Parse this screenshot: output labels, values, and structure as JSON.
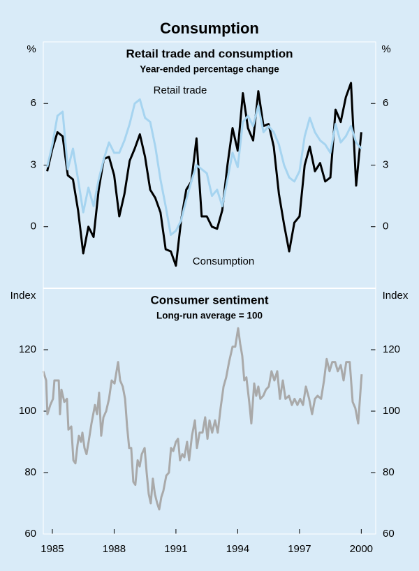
{
  "title": "Consumption",
  "chart_data": [
    {
      "type": "line",
      "title": "Retail trade and consumption",
      "subtitle": "Year-ended percentage change",
      "y_label": "%",
      "xlim": [
        1984.56,
        2000.7
      ],
      "ylim": [
        -3,
        9
      ],
      "yticks": [
        0,
        3,
        6
      ],
      "x": [
        1984.75,
        1985,
        1985.25,
        1985.5,
        1985.75,
        1986,
        1986.25,
        1986.5,
        1986.75,
        1987,
        1987.25,
        1987.5,
        1987.75,
        1988,
        1988.25,
        1988.5,
        1988.75,
        1989,
        1989.25,
        1989.5,
        1989.75,
        1990,
        1990.25,
        1990.5,
        1990.75,
        1991,
        1991.25,
        1991.5,
        1991.75,
        1992,
        1992.25,
        1992.5,
        1992.75,
        1993,
        1993.25,
        1993.5,
        1993.75,
        1994,
        1994.25,
        1994.5,
        1994.75,
        1995,
        1995.25,
        1995.5,
        1995.75,
        1996,
        1996.25,
        1996.5,
        1996.75,
        1997,
        1997.25,
        1997.5,
        1997.75,
        1998,
        1998.25,
        1998.5,
        1998.75,
        1999,
        1999.25,
        1999.5,
        1999.75,
        2000
      ],
      "series": [
        {
          "name": "Retail trade",
          "color": "#000000",
          "values": [
            2.7,
            3.8,
            4.6,
            4.4,
            2.5,
            2.3,
            0.8,
            -1.3,
            0.0,
            -0.5,
            1.8,
            3.3,
            3.4,
            2.5,
            0.5,
            1.6,
            3.2,
            3.8,
            4.5,
            3.4,
            1.8,
            1.4,
            0.7,
            -1.1,
            -1.2,
            -1.9,
            0.3,
            1.8,
            2.2,
            4.3,
            0.5,
            0.5,
            0.0,
            -0.1,
            0.8,
            3.0,
            4.8,
            3.7,
            6.5,
            4.8,
            4.2,
            6.6,
            4.9,
            5.0,
            3.9,
            1.6,
            0.1,
            -1.2,
            0.2,
            0.5,
            3.0,
            3.9,
            2.7,
            3.1,
            2.2,
            2.4,
            5.7,
            5.1,
            6.3,
            7.0,
            2.0,
            4.6
          ]
        },
        {
          "name": "Consumption",
          "color": "#a6d4f0",
          "values": [
            2.9,
            4.0,
            5.4,
            5.6,
            2.8,
            3.8,
            2.3,
            0.7,
            1.9,
            1.0,
            2.3,
            3.3,
            4.1,
            3.6,
            3.6,
            4.2,
            5.0,
            6.0,
            6.2,
            5.3,
            5.1,
            3.9,
            2.3,
            1.0,
            -0.4,
            -0.2,
            0.3,
            1.3,
            2.2,
            3.0,
            2.8,
            2.6,
            1.5,
            1.8,
            1.0,
            2.3,
            3.6,
            2.9,
            5.1,
            5.4,
            4.9,
            5.9,
            4.6,
            4.9,
            4.6,
            4.0,
            3.0,
            2.4,
            2.2,
            2.7,
            4.4,
            5.3,
            4.6,
            4.2,
            4.0,
            3.6,
            5.0,
            4.1,
            4.4,
            4.9,
            4.1,
            3.8
          ]
        }
      ]
    },
    {
      "type": "line",
      "title": "Consumer sentiment",
      "subtitle": "Long-run average = 100",
      "y_label": "Index",
      "xlim": [
        1984.56,
        2000.7
      ],
      "ylim": [
        60,
        140
      ],
      "yticks": [
        60,
        80,
        100,
        120
      ],
      "xticks": [
        1985,
        1988,
        1991,
        1994,
        1997,
        2000
      ],
      "x": [
        1984.56,
        1984.7,
        1984.76,
        1984.9,
        1985.03,
        1985.1,
        1985.31,
        1985.37,
        1985.44,
        1985.58,
        1985.71,
        1985.78,
        1985.92,
        1986.02,
        1986.12,
        1986.22,
        1986.29,
        1986.39,
        1986.46,
        1986.56,
        1986.66,
        1986.76,
        1986.9,
        1987.07,
        1987.17,
        1987.27,
        1987.37,
        1987.48,
        1987.61,
        1987.75,
        1987.88,
        1988.02,
        1988.19,
        1988.29,
        1988.42,
        1988.53,
        1988.63,
        1988.73,
        1988.83,
        1988.93,
        1989.03,
        1989.14,
        1989.24,
        1989.34,
        1989.48,
        1989.58,
        1989.68,
        1989.78,
        1989.88,
        1989.98,
        1990.09,
        1990.19,
        1990.29,
        1990.39,
        1990.53,
        1990.66,
        1990.76,
        1990.87,
        1991.0,
        1991.1,
        1991.2,
        1991.31,
        1991.41,
        1991.54,
        1991.64,
        1991.78,
        1991.92,
        1992.02,
        1992.15,
        1992.29,
        1992.42,
        1992.53,
        1992.63,
        1992.76,
        1992.9,
        1993.03,
        1993.17,
        1993.31,
        1993.44,
        1993.58,
        1993.75,
        1993.88,
        1994.02,
        1994.12,
        1994.22,
        1994.32,
        1994.42,
        1994.56,
        1994.66,
        1994.8,
        1994.9,
        1995.0,
        1995.1,
        1995.24,
        1995.37,
        1995.51,
        1995.64,
        1995.78,
        1995.92,
        1996.05,
        1996.19,
        1996.32,
        1996.49,
        1996.63,
        1996.76,
        1996.9,
        1997.03,
        1997.17,
        1997.31,
        1997.47,
        1997.61,
        1997.75,
        1997.88,
        1998.05,
        1998.19,
        1998.32,
        1998.46,
        1998.59,
        1998.73,
        1998.86,
        1999.0,
        1999.14,
        1999.27,
        1999.44,
        1999.58,
        1999.71,
        1999.85,
        2000.02
      ],
      "series": [
        {
          "color": "#a9a9a9",
          "values": [
            113,
            110,
            99,
            102,
            104,
            110,
            110,
            99,
            107,
            103,
            104,
            94,
            95,
            84,
            83,
            89,
            92,
            90,
            93,
            88,
            86,
            90,
            96,
            102,
            99,
            106,
            92,
            98,
            100,
            104,
            110,
            109,
            116,
            110,
            108,
            104,
            95,
            88,
            88,
            77,
            76,
            84,
            82,
            86,
            88,
            80,
            73,
            70,
            78,
            73,
            70,
            68,
            72,
            74,
            79,
            80,
            88,
            87,
            90,
            91,
            84,
            86,
            85,
            90,
            84,
            92,
            97,
            88,
            93,
            93,
            98,
            91,
            97,
            93,
            97,
            93,
            101,
            108,
            111,
            116,
            121,
            121,
            127,
            122,
            118,
            110,
            111,
            103,
            96,
            109,
            105,
            108,
            104,
            105,
            107,
            108,
            113,
            110,
            113,
            104,
            110,
            104,
            105,
            102,
            104,
            102,
            104,
            102,
            108,
            104,
            99,
            104,
            105,
            104,
            110,
            117,
            113,
            116,
            116,
            113,
            115,
            110,
            116,
            116,
            103,
            101,
            96,
            112
          ]
        }
      ]
    }
  ]
}
